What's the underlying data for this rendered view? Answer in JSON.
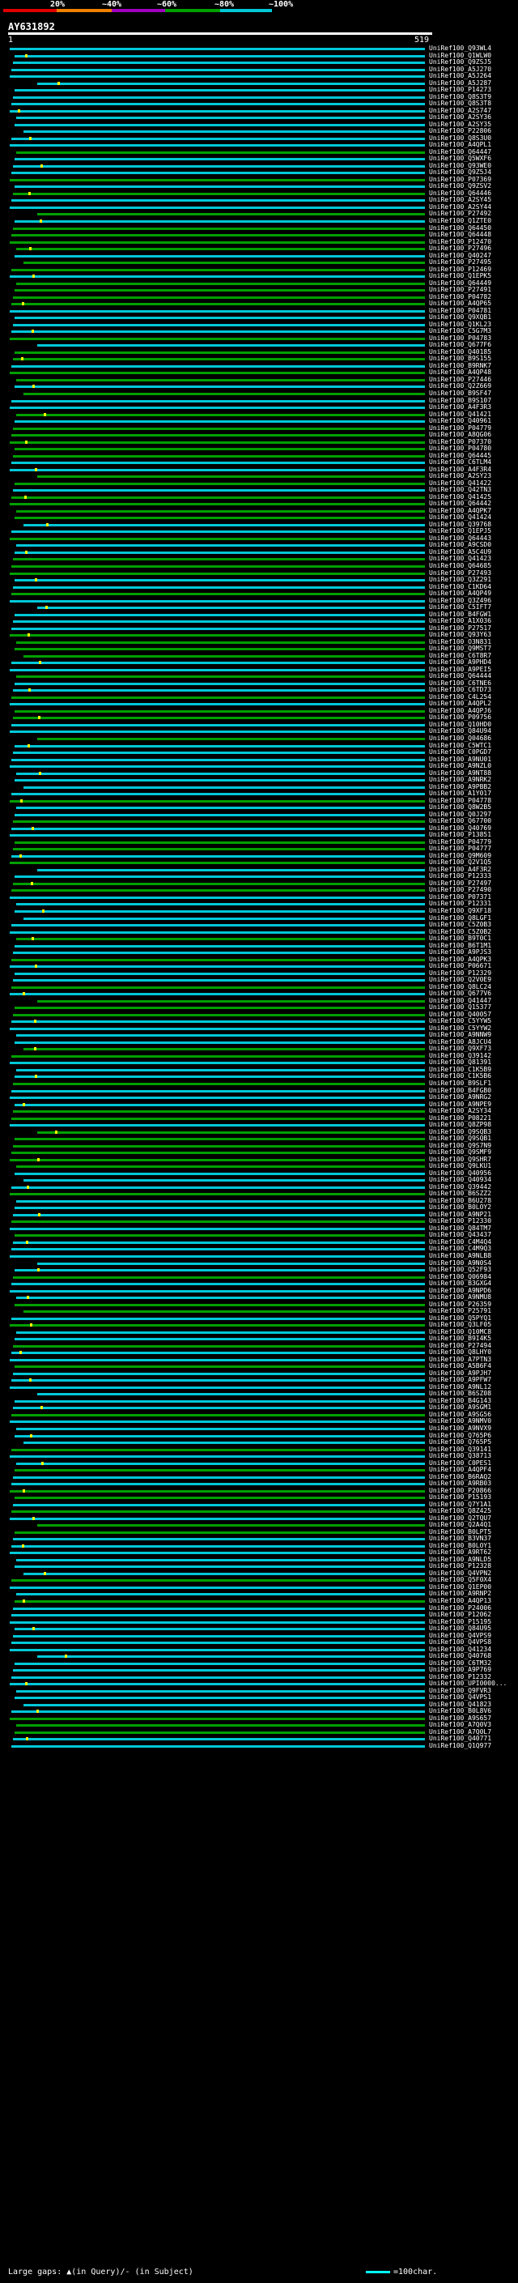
{
  "header": {
    "pct_labels": [
      "20%",
      "~40%",
      "~60%",
      "~80%",
      "~100%"
    ],
    "scale_colors": [
      "#e00000",
      "#f08000",
      "#a000c0",
      "#00a000",
      "#00c8d8"
    ],
    "query_id": "AY631892",
    "start_tick": "1",
    "end_tick": "519"
  },
  "hits": [
    {
      "id": "UniRef100_Q93WL4",
      "color": "#00c8d8"
    },
    {
      "id": "UniRef100_Q1WLW0",
      "color": "#00c8d8"
    },
    {
      "id": "UniRef100_Q9ZSJ5",
      "color": "#00c8d8"
    },
    {
      "id": "UniRef100_A5J270",
      "color": "#00c8d8"
    },
    {
      "id": "UniRef100_A5J264",
      "color": "#00c8d8"
    },
    {
      "id": "UniRef100_A5J287",
      "color": "#00c8d8"
    },
    {
      "id": "UniRef100_P14273",
      "color": "#00c8d8"
    },
    {
      "id": "UniRef100_Q8S3T9",
      "color": "#00c8d8"
    },
    {
      "id": "UniRef100_Q8S3T8",
      "color": "#00c8d8"
    },
    {
      "id": "UniRef100_A2S747",
      "color": "#00c8d8"
    },
    {
      "id": "UniRef100_A2SY36",
      "color": "#00c8d8"
    },
    {
      "id": "UniRef100_A2SY35",
      "color": "#00c8d8"
    },
    {
      "id": "UniRef100_P22806",
      "color": "#00c8d8"
    },
    {
      "id": "UniRef100_Q8S3U0",
      "color": "#00c8d8"
    },
    {
      "id": "UniRef100_A4QPL1",
      "color": "#00c8d8"
    },
    {
      "id": "UniRef100_Q64447",
      "color": "#00a000"
    },
    {
      "id": "UniRef100_Q5WXF6",
      "color": "#00c8d8"
    },
    {
      "id": "UniRef100_Q93WE0",
      "color": "#00c8d8"
    },
    {
      "id": "UniRef100_Q9Z5J4",
      "color": "#00c8d8"
    },
    {
      "id": "UniRef100_P07369",
      "color": "#00a000"
    },
    {
      "id": "UniRef100_Q9ZSV2",
      "color": "#00c8d8"
    },
    {
      "id": "UniRef100_Q64446",
      "color": "#00a000"
    },
    {
      "id": "UniRef100_A2SY45",
      "color": "#00c8d8"
    },
    {
      "id": "UniRef100_A2SY44",
      "color": "#00c8d8"
    },
    {
      "id": "UniRef100_P27492",
      "color": "#00a000"
    },
    {
      "id": "UniRef100_Q1ZTE0",
      "color": "#00c8d8"
    },
    {
      "id": "UniRef100_Q64450",
      "color": "#00a000"
    },
    {
      "id": "UniRef100_Q64448",
      "color": "#00a000"
    },
    {
      "id": "UniRef100_P12470",
      "color": "#00a000"
    },
    {
      "id": "UniRef100_P27496",
      "color": "#00a000"
    },
    {
      "id": "UniRef100_Q40247",
      "color": "#00c8d8"
    },
    {
      "id": "UniRef100_P27495",
      "color": "#00a000"
    },
    {
      "id": "UniRef100_P12469",
      "color": "#00a000"
    },
    {
      "id": "UniRef100_Q1EPK5",
      "color": "#00c8d8"
    },
    {
      "id": "UniRef100_Q64449",
      "color": "#00a000"
    },
    {
      "id": "UniRef100_P27491",
      "color": "#00a000"
    },
    {
      "id": "UniRef100_P04782",
      "color": "#00a000"
    },
    {
      "id": "UniRef100_A4QP65",
      "color": "#00a000"
    },
    {
      "id": "UniRef100_P04781",
      "color": "#00c8d8"
    },
    {
      "id": "UniRef100_Q9XQB1",
      "color": "#00c8d8"
    },
    {
      "id": "UniRef100_Q1KL23",
      "color": "#00c8d8"
    },
    {
      "id": "UniRef100_C5G7M3",
      "color": "#00c8d8"
    },
    {
      "id": "UniRef100_P04783",
      "color": "#00a000"
    },
    {
      "id": "UniRef100_Q677F6",
      "color": "#00c8d8"
    },
    {
      "id": "UniRef100_Q40185",
      "color": "#00a000"
    },
    {
      "id": "UniRef100_B9S155",
      "color": "#00a000"
    },
    {
      "id": "UniRef100_B9RNK7",
      "color": "#00c8d8"
    },
    {
      "id": "UniRef100_A4QP48",
      "color": "#00a000"
    },
    {
      "id": "UniRef100_P27446",
      "color": "#00a000"
    },
    {
      "id": "UniRef100_Q2Z669",
      "color": "#00c8d8"
    },
    {
      "id": "UniRef100_B9SF47",
      "color": "#00a000"
    },
    {
      "id": "UniRef100_B9S107",
      "color": "#00c8d8"
    },
    {
      "id": "UniRef100_A4F3R3",
      "color": "#00c8d8"
    },
    {
      "id": "UniRef100_Q41421",
      "color": "#00a000"
    },
    {
      "id": "UniRef100_Q40961",
      "color": "#00c8d8"
    },
    {
      "id": "UniRef100_P04779",
      "color": "#00a000"
    },
    {
      "id": "UniRef100_A8QG06",
      "color": "#00a000"
    },
    {
      "id": "UniRef100_P07370",
      "color": "#00a000"
    },
    {
      "id": "UniRef100_P04780",
      "color": "#00a000"
    },
    {
      "id": "UniRef100_Q64445",
      "color": "#00a000"
    },
    {
      "id": "UniRef100_C6TLM4",
      "color": "#00c8d8"
    },
    {
      "id": "UniRef100_A4F3R4",
      "color": "#00c8d8"
    },
    {
      "id": "UniRef100_A2SY23",
      "color": "#00a000"
    },
    {
      "id": "UniRef100_Q41422",
      "color": "#00a000"
    },
    {
      "id": "UniRef100_Q42TN3",
      "color": "#00c8d8"
    },
    {
      "id": "UniRef100_Q41425",
      "color": "#00a000"
    },
    {
      "id": "UniRef100_Q64442",
      "color": "#00a000"
    },
    {
      "id": "UniRef100_A4QPK7",
      "color": "#00a000"
    },
    {
      "id": "UniRef100_Q41424",
      "color": "#00a000"
    },
    {
      "id": "UniRef100_Q39768",
      "color": "#00c8d8"
    },
    {
      "id": "UniRef100_Q1EPJ5",
      "color": "#00c8d8"
    },
    {
      "id": "UniRef100_Q64443",
      "color": "#00a000"
    },
    {
      "id": "UniRef100_A9CSD0",
      "color": "#00c8d8"
    },
    {
      "id": "UniRef100_A5C4U9",
      "color": "#00c8d8"
    },
    {
      "id": "UniRef100_Q41423",
      "color": "#00a000"
    },
    {
      "id": "UniRef100_Q64685",
      "color": "#00a000"
    },
    {
      "id": "UniRef100_P27493",
      "color": "#00a000"
    },
    {
      "id": "UniRef100_Q3Z291",
      "color": "#00c8d8"
    },
    {
      "id": "UniRef100_C1KD64",
      "color": "#00c8d8"
    },
    {
      "id": "UniRef100_A4QP49",
      "color": "#00a000"
    },
    {
      "id": "UniRef100_Q3Z496",
      "color": "#00c8d8"
    },
    {
      "id": "UniRef100_C5IFT7",
      "color": "#00c8d8"
    },
    {
      "id": "UniRef100_B4FGW1",
      "color": "#00c8d8"
    },
    {
      "id": "UniRef100_A1X036",
      "color": "#00c8d8"
    },
    {
      "id": "UniRef100_P27517",
      "color": "#00c8d8"
    },
    {
      "id": "UniRef100_Q93Y63",
      "color": "#00a000"
    },
    {
      "id": "UniRef100_O3N831",
      "color": "#00a000"
    },
    {
      "id": "UniRef100_Q9MST7",
      "color": "#00a000"
    },
    {
      "id": "UniRef100_C6T8R7",
      "color": "#00a000"
    },
    {
      "id": "UniRef100_A9PHD4",
      "color": "#00c8d8"
    },
    {
      "id": "UniRef100_A9PEI5",
      "color": "#00c8d8"
    },
    {
      "id": "UniRef100_Q64444",
      "color": "#00a000"
    },
    {
      "id": "UniRef100_C6TNE6",
      "color": "#00c8d8"
    },
    {
      "id": "UniRef100_C6TD73",
      "color": "#00c8d8"
    },
    {
      "id": "UniRef100_C4L254",
      "color": "#00a000"
    },
    {
      "id": "UniRef100_A4QPL2",
      "color": "#00c8d8"
    },
    {
      "id": "UniRef100_A4QPJ6",
      "color": "#00a000"
    },
    {
      "id": "UniRef100_P09756",
      "color": "#00a000"
    },
    {
      "id": "UniRef100_Q10HD0",
      "color": "#00c8d8"
    },
    {
      "id": "UniRef100_Q84U94",
      "color": "#00c8d8"
    },
    {
      "id": "UniRef100_Q04686",
      "color": "#00a000"
    },
    {
      "id": "UniRef100_C5WTC1",
      "color": "#00c8d8"
    },
    {
      "id": "UniRef100_C0PGD7",
      "color": "#00c8d8"
    },
    {
      "id": "UniRef100_A9NU01",
      "color": "#00c8d8"
    },
    {
      "id": "UniRef100_A9NZL0",
      "color": "#00c8d8"
    },
    {
      "id": "UniRef100_A9NT88",
      "color": "#00c8d8"
    },
    {
      "id": "UniRef100_A9NRK2",
      "color": "#00c8d8"
    },
    {
      "id": "UniRef100_A9PBB2",
      "color": "#00c8d8"
    },
    {
      "id": "UniRef100_A1Y017",
      "color": "#00c8d8"
    },
    {
      "id": "UniRef100_P04778",
      "color": "#00a000"
    },
    {
      "id": "UniRef100_Q8W2B5",
      "color": "#00c8d8"
    },
    {
      "id": "UniRef100_Q0J297",
      "color": "#00c8d8"
    },
    {
      "id": "UniRef100_Q67700",
      "color": "#00a000"
    },
    {
      "id": "UniRef100_Q40769",
      "color": "#00c8d8"
    },
    {
      "id": "UniRef100_P13851",
      "color": "#00c8d8"
    },
    {
      "id": "UniRef100_P04779",
      "color": "#00a000"
    },
    {
      "id": "UniRef100_P04777",
      "color": "#00a000"
    },
    {
      "id": "UniRef100_Q9M609",
      "color": "#00c8d8"
    },
    {
      "id": "UniRef100_Q2V1Q5",
      "color": "#00a000"
    },
    {
      "id": "UniRef100_A4F3R2",
      "color": "#00c8d8"
    },
    {
      "id": "UniRef100_P12333",
      "color": "#00c8d8"
    },
    {
      "id": "UniRef100_P27497",
      "color": "#00a000"
    },
    {
      "id": "UniRef100_P27490",
      "color": "#00a000"
    },
    {
      "id": "UniRef100_P07371",
      "color": "#00c8d8"
    },
    {
      "id": "UniRef100_P12331",
      "color": "#00c8d8"
    },
    {
      "id": "UniRef100_Q9XF18",
      "color": "#00c8d8"
    },
    {
      "id": "UniRef100_Q8LGF1",
      "color": "#00c8d8"
    },
    {
      "id": "UniRef100_C5Z0B3",
      "color": "#00c8d8"
    },
    {
      "id": "UniRef100_C5Z0B2",
      "color": "#00c8d8"
    },
    {
      "id": "UniRef100_B9T0C1",
      "color": "#00a000"
    },
    {
      "id": "UniRef100_B6T1M1",
      "color": "#00c8d8"
    },
    {
      "id": "UniRef100_A9PJS3",
      "color": "#00c8d8"
    },
    {
      "id": "UniRef100_A4QPK3",
      "color": "#00a000"
    },
    {
      "id": "UniRef100_P06671",
      "color": "#00c8d8"
    },
    {
      "id": "UniRef100_P12329",
      "color": "#00c8d8"
    },
    {
      "id": "UniRef100_Q2V0E9",
      "color": "#00c8d8"
    },
    {
      "id": "UniRef100_Q8LC24",
      "color": "#00a000"
    },
    {
      "id": "UniRef100_Q677V6",
      "color": "#00c8d8"
    },
    {
      "id": "UniRef100_Q41447",
      "color": "#00a000"
    },
    {
      "id": "UniRef100_Q15377",
      "color": "#00a000"
    },
    {
      "id": "UniRef100_Q40057",
      "color": "#00a000"
    },
    {
      "id": "UniRef100_C5YYW5",
      "color": "#00c8d8"
    },
    {
      "id": "UniRef100_C5YYW2",
      "color": "#00c8d8"
    },
    {
      "id": "UniRef100_A9NNW9",
      "color": "#00c8d8"
    },
    {
      "id": "UniRef100_A8JCU4",
      "color": "#00c8d8"
    },
    {
      "id": "UniRef100_Q9XF73",
      "color": "#00a000"
    },
    {
      "id": "UniRef100_Q39142",
      "color": "#00a000"
    },
    {
      "id": "UniRef100_Q81391",
      "color": "#00c8d8"
    },
    {
      "id": "UniRef100_C1K5B9",
      "color": "#00c8d8"
    },
    {
      "id": "UniRef100_C1K5B6",
      "color": "#00c8d8"
    },
    {
      "id": "UniRef100_B9SLF1",
      "color": "#00a000"
    },
    {
      "id": "UniRef100_B4FGB0",
      "color": "#00c8d8"
    },
    {
      "id": "UniRef100_A9NRG2",
      "color": "#00c8d8"
    },
    {
      "id": "UniRef100_A9NPE9",
      "color": "#00c8d8"
    },
    {
      "id": "UniRef100_A2SY34",
      "color": "#00a000"
    },
    {
      "id": "UniRef100_P08221",
      "color": "#00a000"
    },
    {
      "id": "UniRef100_Q8ZP98",
      "color": "#00c8d8"
    },
    {
      "id": "UniRef100_Q9SQB3",
      "color": "#00a000"
    },
    {
      "id": "UniRef100_Q9SQB1",
      "color": "#00a000"
    },
    {
      "id": "UniRef100_Q9S7N9",
      "color": "#00a000"
    },
    {
      "id": "UniRef100_Q9SMF9",
      "color": "#00a000"
    },
    {
      "id": "UniRef100_Q9SHR7",
      "color": "#00a000"
    },
    {
      "id": "UniRef100_Q9LKU1",
      "color": "#00a000"
    },
    {
      "id": "UniRef100_Q40956",
      "color": "#00c8d8"
    },
    {
      "id": "UniRef100_Q40934",
      "color": "#00c8d8"
    },
    {
      "id": "UniRef100_Q39442",
      "color": "#00c8d8"
    },
    {
      "id": "UniRef100_B6SZZ2",
      "color": "#00a000"
    },
    {
      "id": "UniRef100_B6U278",
      "color": "#00c8d8"
    },
    {
      "id": "UniRef100_B0LOY2",
      "color": "#00c8d8"
    },
    {
      "id": "UniRef100_A9NP21",
      "color": "#00c8d8"
    },
    {
      "id": "UniRef100_P12330",
      "color": "#00a000"
    },
    {
      "id": "UniRef100_Q84TM7",
      "color": "#00c8d8"
    },
    {
      "id": "UniRef100_Q43437",
      "color": "#00a000"
    },
    {
      "id": "UniRef100_C4M4Q4",
      "color": "#00c8d8"
    },
    {
      "id": "UniRef100_C4M9Q3",
      "color": "#00c8d8"
    },
    {
      "id": "UniRef100_A9NLB8",
      "color": "#00c8d8"
    },
    {
      "id": "UniRef100_A9N0S4",
      "color": "#00c8d8"
    },
    {
      "id": "UniRef100_Q52F93",
      "color": "#00c8d8"
    },
    {
      "id": "UniRef100_Q06984",
      "color": "#00a000"
    },
    {
      "id": "UniRef100_B3GXG4",
      "color": "#00c8d8"
    },
    {
      "id": "UniRef100_A9NPD6",
      "color": "#00c8d8"
    },
    {
      "id": "UniRef100_A9NMU8",
      "color": "#00c8d8"
    },
    {
      "id": "UniRef100_P26359",
      "color": "#00a000"
    },
    {
      "id": "UniRef100_P25791",
      "color": "#00a000"
    },
    {
      "id": "UniRef100_Q5PYQ1",
      "color": "#00c8d8"
    },
    {
      "id": "UniRef100_Q3LF05",
      "color": "#00a000"
    },
    {
      "id": "UniRef100_Q10MC8",
      "color": "#00c8d8"
    },
    {
      "id": "UniRef100_B9I4K5",
      "color": "#00c8d8"
    },
    {
      "id": "UniRef100_P27494",
      "color": "#00a000"
    },
    {
      "id": "UniRef100_Q8LHY0",
      "color": "#00c8d8"
    },
    {
      "id": "UniRef100_A7PTN3",
      "color": "#00c8d8"
    },
    {
      "id": "UniRef100_A5B6F4",
      "color": "#00a000"
    },
    {
      "id": "UniRef100_A9PJH7",
      "color": "#00c8d8"
    },
    {
      "id": "UniRef100_A9PFW7",
      "color": "#00c8d8"
    },
    {
      "id": "UniRef100_A9NL12",
      "color": "#00c8d8"
    },
    {
      "id": "UniRef100_B6SZ08",
      "color": "#00c8d8"
    },
    {
      "id": "UniRef100_B4G143",
      "color": "#00c8d8"
    },
    {
      "id": "UniRef100_A9SGM1",
      "color": "#00c8d8"
    },
    {
      "id": "UniRef100_A9SG56",
      "color": "#00a000"
    },
    {
      "id": "UniRef100_A9NMV0",
      "color": "#00c8d8"
    },
    {
      "id": "UniRef100_A9NVX9",
      "color": "#00c8d8"
    },
    {
      "id": "UniRef100_Q765P6",
      "color": "#00c8d8"
    },
    {
      "id": "UniRef100_Q765P5",
      "color": "#00c8d8"
    },
    {
      "id": "UniRef100_Q39141",
      "color": "#00a000"
    },
    {
      "id": "UniRef100_Q38713",
      "color": "#00c8d8"
    },
    {
      "id": "UniRef100_C0PES1",
      "color": "#00c8d8"
    },
    {
      "id": "UniRef100_A4QPF4",
      "color": "#00a000"
    },
    {
      "id": "UniRef100_B6RAQ2",
      "color": "#00c8d8"
    },
    {
      "id": "UniRef100_A9RB03",
      "color": "#00c8d8"
    },
    {
      "id": "UniRef100_P20866",
      "color": "#00a000"
    },
    {
      "id": "UniRef100_P15193",
      "color": "#00a000"
    },
    {
      "id": "UniRef100_Q7Y1A1",
      "color": "#00c8d8"
    },
    {
      "id": "UniRef100_Q8Z425",
      "color": "#00a000"
    },
    {
      "id": "UniRef100_Q2TQU7",
      "color": "#00c8d8"
    },
    {
      "id": "UniRef100_Q2A4Q1",
      "color": "#00a000"
    },
    {
      "id": "UniRef100_B0LPT5",
      "color": "#00a000"
    },
    {
      "id": "UniRef100_B3VN37",
      "color": "#00c8d8"
    },
    {
      "id": "UniRef100_B0LOY1",
      "color": "#00c8d8"
    },
    {
      "id": "UniRef100_A9RT62",
      "color": "#00c8d8"
    },
    {
      "id": "UniRef100_A9NLD5",
      "color": "#00c8d8"
    },
    {
      "id": "UniRef100_P12328",
      "color": "#00c8d8"
    },
    {
      "id": "UniRef100_Q4VPN2",
      "color": "#00c8d8"
    },
    {
      "id": "UniRef100_Q5F0X4",
      "color": "#00a000"
    },
    {
      "id": "UniRef100_Q1EP00",
      "color": "#00c8d8"
    },
    {
      "id": "UniRef100_A9RNP2",
      "color": "#00c8d8"
    },
    {
      "id": "UniRef100_A4QP13",
      "color": "#00a000"
    },
    {
      "id": "UniRef100_P24006",
      "color": "#00c8d8"
    },
    {
      "id": "UniRef100_P12062",
      "color": "#00c8d8"
    },
    {
      "id": "UniRef100_P15195",
      "color": "#00c8d8"
    },
    {
      "id": "UniRef100_Q84U95",
      "color": "#00c8d8"
    },
    {
      "id": "UniRef100_Q4VPS9",
      "color": "#00c8d8"
    },
    {
      "id": "UniRef100_Q4VPS8",
      "color": "#00c8d8"
    },
    {
      "id": "UniRef100_Q41234",
      "color": "#00c8d8"
    },
    {
      "id": "UniRef100_Q40768",
      "color": "#00c8d8"
    },
    {
      "id": "UniRef100_C6TM32",
      "color": "#00c8d8"
    },
    {
      "id": "UniRef100_A9P769",
      "color": "#00c8d8"
    },
    {
      "id": "UniRef100_P12332",
      "color": "#00c8d8"
    },
    {
      "id": "UniRef100_UPI0000...",
      "color": "#00c8d8"
    },
    {
      "id": "UniRef100_Q9FVR3",
      "color": "#00c8d8"
    },
    {
      "id": "UniRef100_Q4VPS1",
      "color": "#00c8d8"
    },
    {
      "id": "UniRef100_Q41823",
      "color": "#00c8d8"
    },
    {
      "id": "UniRef100_B0L8V6",
      "color": "#00c8d8"
    },
    {
      "id": "UniRef100_A9S657",
      "color": "#00a000"
    },
    {
      "id": "UniRef100_A7Q0V3",
      "color": "#00a000"
    },
    {
      "id": "UniRef100_A7Q0L7",
      "color": "#00a000"
    },
    {
      "id": "UniRef100_Q40771",
      "color": "#00c8d8"
    },
    {
      "id": "UniRef100_Q1Q977",
      "color": "#00c8d8"
    }
  ],
  "footer": {
    "gaps_label": "Large gaps: ▲(in Query)/- (in Subject)",
    "scale_label": "=100char."
  }
}
